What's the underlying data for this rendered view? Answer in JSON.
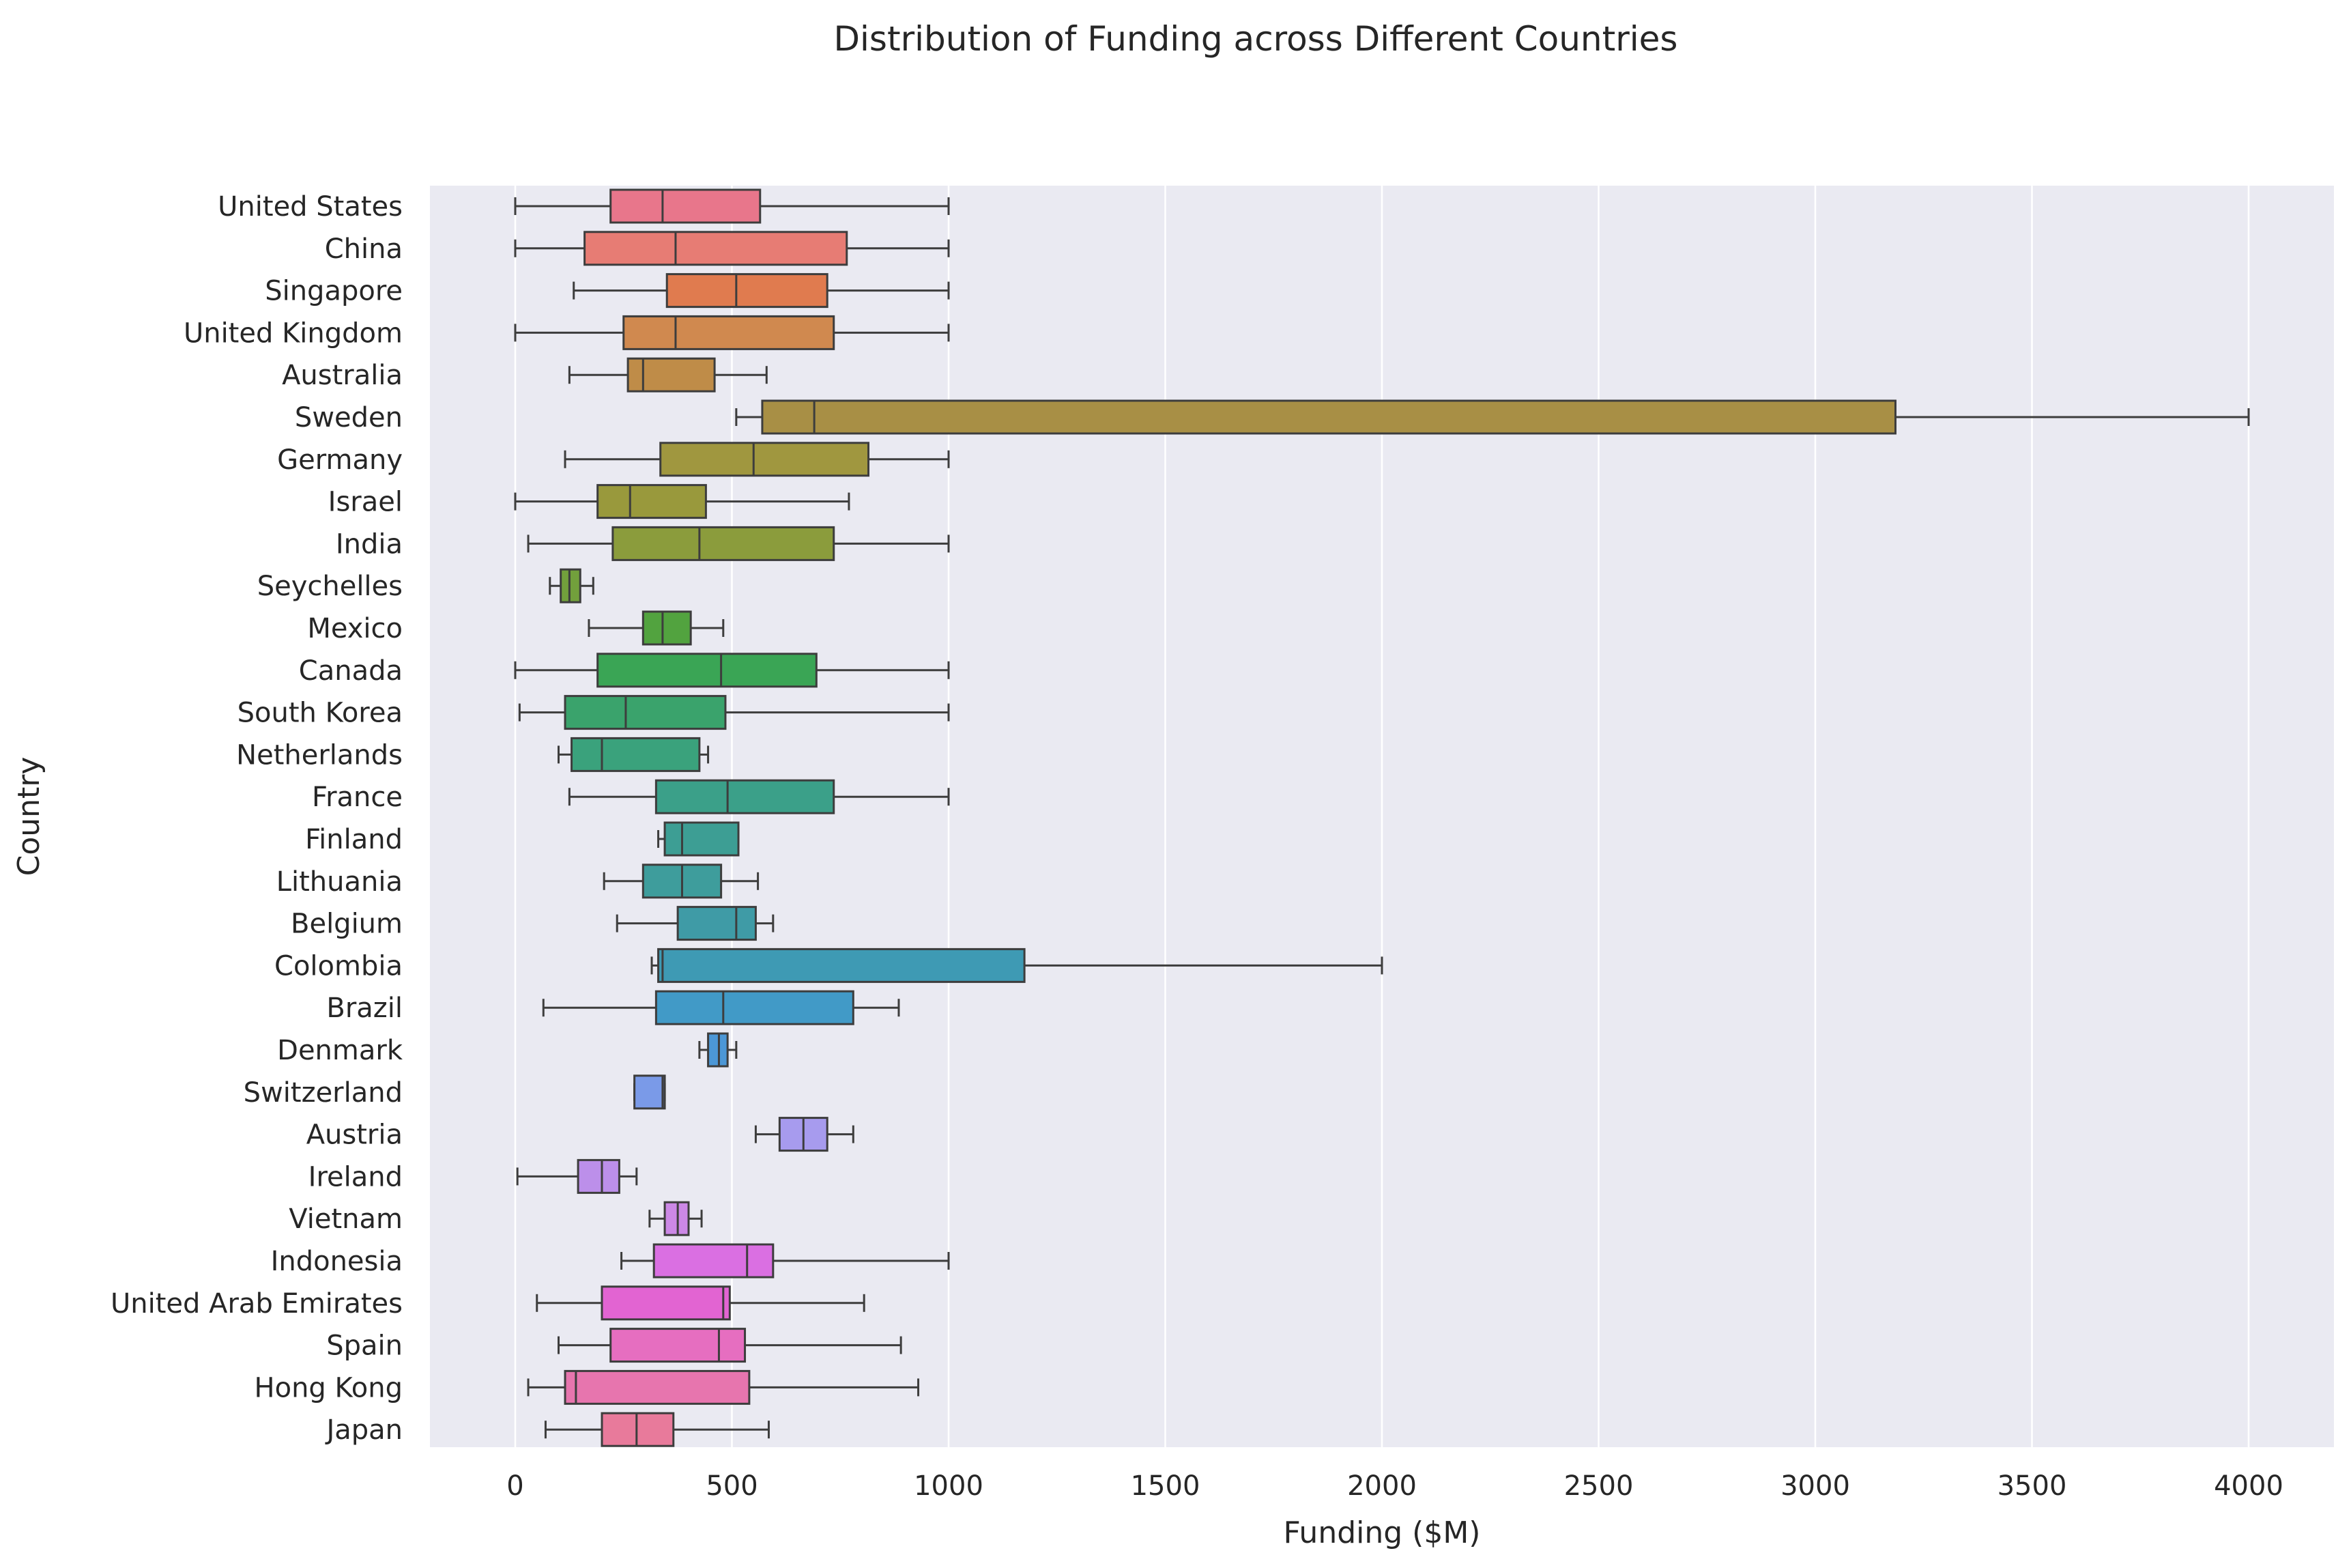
{
  "chart_data": {
    "type": "boxplot",
    "orientation": "horizontal",
    "title": "Distribution of Funding across Different Countries",
    "xlabel": "Funding ($M)",
    "ylabel": "Country",
    "xlim": [
      -200,
      4200
    ],
    "xticks": [
      0,
      500,
      1000,
      1500,
      2000,
      2500,
      3000,
      3500,
      4000
    ],
    "grid": true,
    "legend": "none",
    "colors": {
      "background": "#eaeaf2",
      "grid": "#ffffff",
      "box_edge": "#3d3d3d"
    },
    "categories": [
      "United States",
      "China",
      "Singapore",
      "United Kingdom",
      "Australia",
      "Sweden",
      "Germany",
      "Israel",
      "India",
      "Seychelles",
      "Mexico",
      "Canada",
      "South Korea",
      "Netherlands",
      "France",
      "Finland",
      "Lithuania",
      "Belgium",
      "Colombia",
      "Brazil",
      "Denmark",
      "Switzerland",
      "Austria",
      "Ireland",
      "Vietnam",
      "Indonesia",
      "United Arab Emirates",
      "Spain",
      "Hong Kong",
      "Japan"
    ],
    "boxes": [
      {
        "country": "United States",
        "whislo": 0,
        "q1": 220,
        "med": 340,
        "q3": 565,
        "whishi": 1000,
        "color": "#e8768b"
      },
      {
        "country": "China",
        "whislo": 0,
        "q1": 160,
        "med": 370,
        "q3": 765,
        "whishi": 1000,
        "color": "#e77c74"
      },
      {
        "country": "Singapore",
        "whislo": 135,
        "q1": 350,
        "med": 510,
        "q3": 720,
        "whishi": 1000,
        "color": "#e07b4f"
      },
      {
        "country": "United Kingdom",
        "whislo": 0,
        "q1": 250,
        "med": 370,
        "q3": 735,
        "whishi": 1000,
        "color": "#d0894f"
      },
      {
        "country": "Australia",
        "whislo": 125,
        "q1": 260,
        "med": 295,
        "q3": 460,
        "whishi": 580,
        "color": "#bf8c48"
      },
      {
        "country": "Sweden",
        "whislo": 510,
        "q1": 570,
        "med": 690,
        "q3": 3185,
        "whishi": 4000,
        "color": "#a88f45"
      },
      {
        "country": "Germany",
        "whislo": 115,
        "q1": 335,
        "med": 550,
        "q3": 815,
        "whishi": 1000,
        "color": "#a0973f"
      },
      {
        "country": "Israel",
        "whislo": 0,
        "q1": 190,
        "med": 265,
        "q3": 440,
        "whishi": 770,
        "color": "#99993c"
      },
      {
        "country": "India",
        "whislo": 30,
        "q1": 225,
        "med": 425,
        "q3": 735,
        "whishi": 1000,
        "color": "#8b9c3c"
      },
      {
        "country": "Seychelles",
        "whislo": 80,
        "q1": 105,
        "med": 125,
        "q3": 150,
        "whishi": 180,
        "color": "#72a03c"
      },
      {
        "country": "Mexico",
        "whislo": 170,
        "q1": 295,
        "med": 340,
        "q3": 405,
        "whishi": 480,
        "color": "#52a33f"
      },
      {
        "country": "Canada",
        "whislo": 0,
        "q1": 190,
        "med": 475,
        "q3": 695,
        "whishi": 1000,
        "color": "#3aa555"
      },
      {
        "country": "South Korea",
        "whislo": 10,
        "q1": 115,
        "med": 255,
        "q3": 485,
        "whishi": 1000,
        "color": "#3aa36c"
      },
      {
        "country": "Netherlands",
        "whislo": 100,
        "q1": 130,
        "med": 200,
        "q3": 425,
        "whishi": 445,
        "color": "#3aa27c"
      },
      {
        "country": "France",
        "whislo": 125,
        "q1": 325,
        "med": 490,
        "q3": 735,
        "whishi": 1000,
        "color": "#3ba089"
      },
      {
        "country": "Finland",
        "whislo": 330,
        "q1": 345,
        "med": 385,
        "q3": 515,
        "whishi": 515,
        "color": "#3d9e94"
      },
      {
        "country": "Lithuania",
        "whislo": 205,
        "q1": 295,
        "med": 385,
        "q3": 475,
        "whishi": 560,
        "color": "#3e9d9c"
      },
      {
        "country": "Belgium",
        "whislo": 235,
        "q1": 375,
        "med": 510,
        "q3": 555,
        "whishi": 595,
        "color": "#3f9ba6"
      },
      {
        "country": "Colombia",
        "whislo": 315,
        "q1": 330,
        "med": 340,
        "q3": 1175,
        "whishi": 2000,
        "color": "#3e9ab4"
      },
      {
        "country": "Brazil",
        "whislo": 65,
        "q1": 325,
        "med": 480,
        "q3": 780,
        "whishi": 885,
        "color": "#419ac7"
      },
      {
        "country": "Denmark",
        "whislo": 425,
        "q1": 445,
        "med": 470,
        "q3": 490,
        "whishi": 510,
        "color": "#4c97d6"
      },
      {
        "country": "Switzerland",
        "whislo": 275,
        "q1": 275,
        "med": 340,
        "q3": 345,
        "whishi": 345,
        "color": "#7a9ae8"
      },
      {
        "country": "Austria",
        "whislo": 555,
        "q1": 610,
        "med": 665,
        "q3": 720,
        "whishi": 780,
        "color": "#a79bee"
      },
      {
        "country": "Ireland",
        "whislo": 5,
        "q1": 145,
        "med": 200,
        "q3": 240,
        "whishi": 280,
        "color": "#bc8fea"
      },
      {
        "country": "Vietnam",
        "whislo": 310,
        "q1": 345,
        "med": 375,
        "q3": 400,
        "whishi": 430,
        "color": "#cc88e6"
      },
      {
        "country": "Indonesia",
        "whislo": 245,
        "q1": 320,
        "med": 535,
        "q3": 595,
        "whishi": 1000,
        "color": "#da6fe2"
      },
      {
        "country": "United Arab Emirates",
        "whislo": 50,
        "q1": 200,
        "med": 480,
        "q3": 495,
        "whishi": 805,
        "color": "#e264d2"
      },
      {
        "country": "Spain",
        "whislo": 100,
        "q1": 220,
        "med": 470,
        "q3": 530,
        "whishi": 890,
        "color": "#e66ec0"
      },
      {
        "country": "Hong Kong",
        "whislo": 30,
        "q1": 115,
        "med": 140,
        "q3": 540,
        "whishi": 930,
        "color": "#e775ae"
      },
      {
        "country": "Japan",
        "whislo": 70,
        "q1": 200,
        "med": 280,
        "q3": 365,
        "whishi": 585,
        "color": "#e87a9b"
      }
    ]
  }
}
